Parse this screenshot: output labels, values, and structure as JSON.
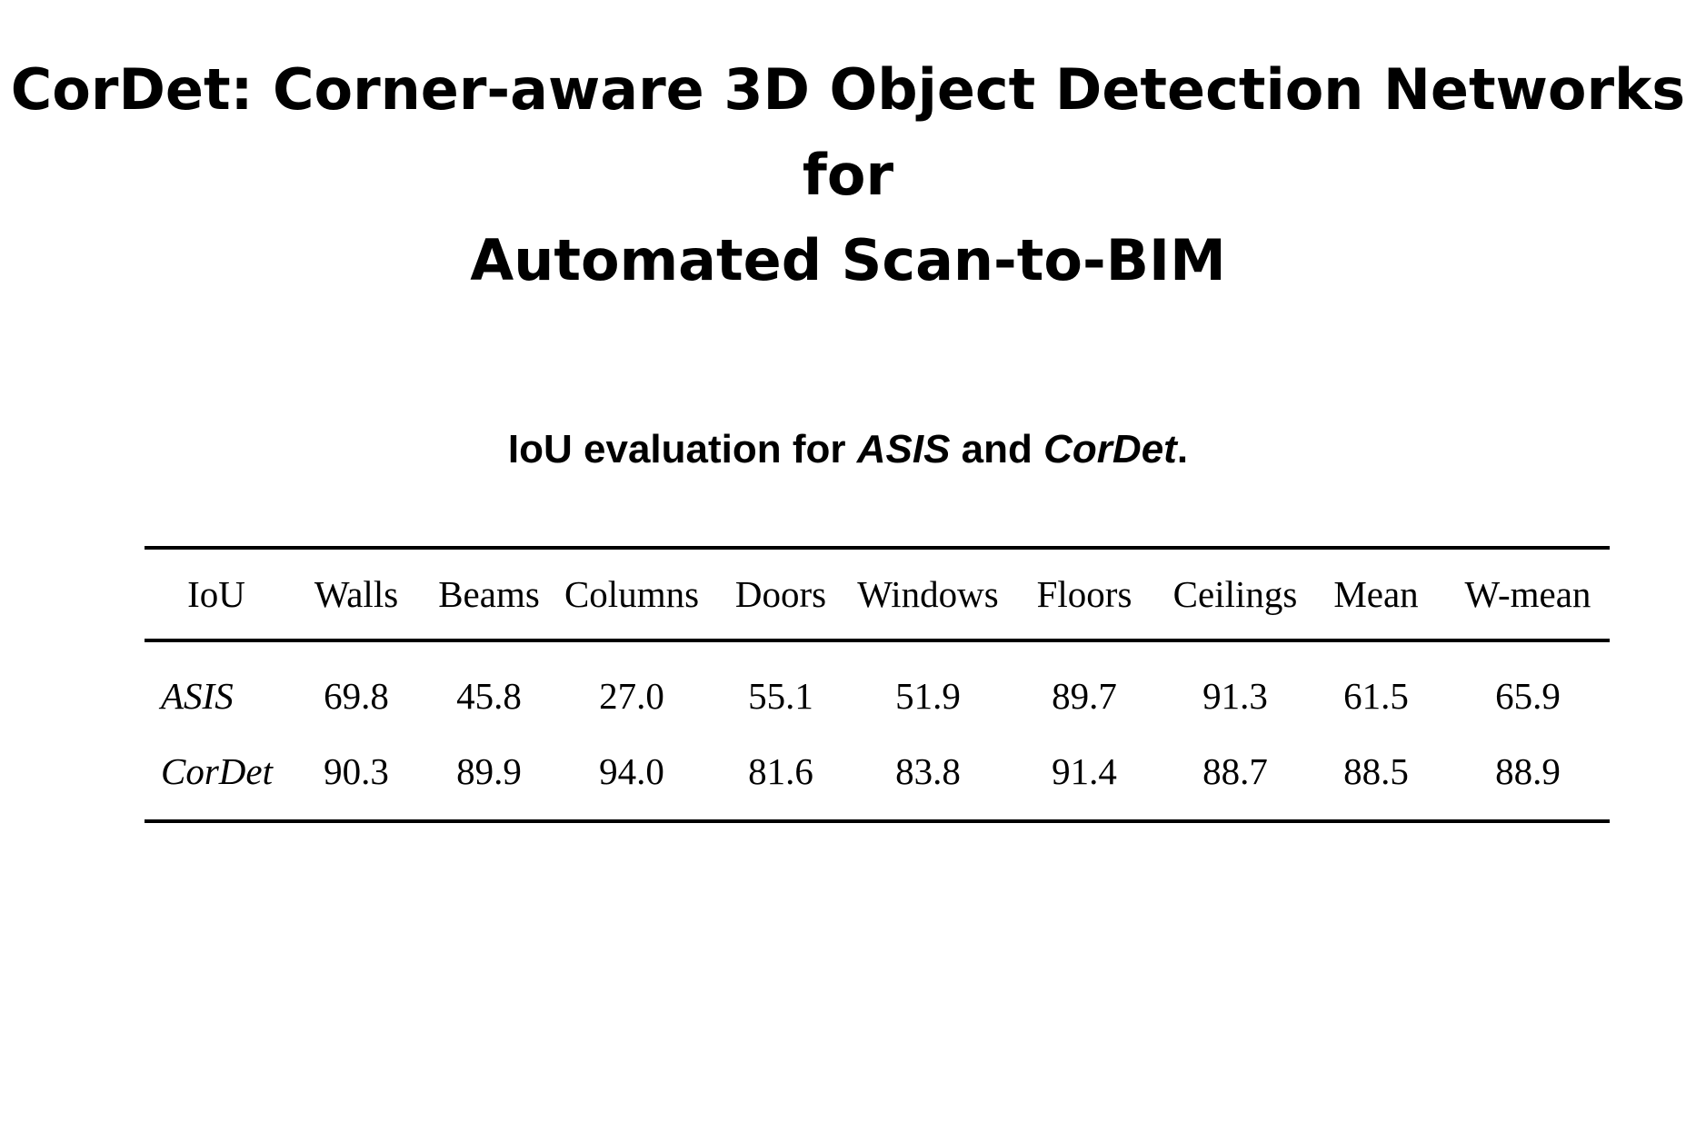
{
  "paper": {
    "title_line1": "CorDet: Corner-aware 3D Object Detection Networks for",
    "title_line2": "Automated Scan-to-BIM"
  },
  "table": {
    "caption_prefix": "IoU evaluation for ",
    "caption_method1": "ASIS",
    "caption_mid": " and ",
    "caption_method2": "CorDet",
    "caption_suffix": ".",
    "headers": [
      "IoU",
      "Walls",
      "Beams",
      "Columns",
      "Doors",
      "Windows",
      "Floors",
      "Ceilings",
      "Mean",
      "W-mean"
    ],
    "rows": [
      {
        "method": "ASIS",
        "values": [
          "69.8",
          "45.8",
          "27.0",
          "55.1",
          "51.9",
          "89.7",
          "91.3",
          "61.5",
          "65.9"
        ]
      },
      {
        "method": "CorDet",
        "values": [
          "90.3",
          "89.9",
          "94.0",
          "81.6",
          "83.8",
          "91.4",
          "88.7",
          "88.5",
          "88.9"
        ]
      }
    ]
  }
}
